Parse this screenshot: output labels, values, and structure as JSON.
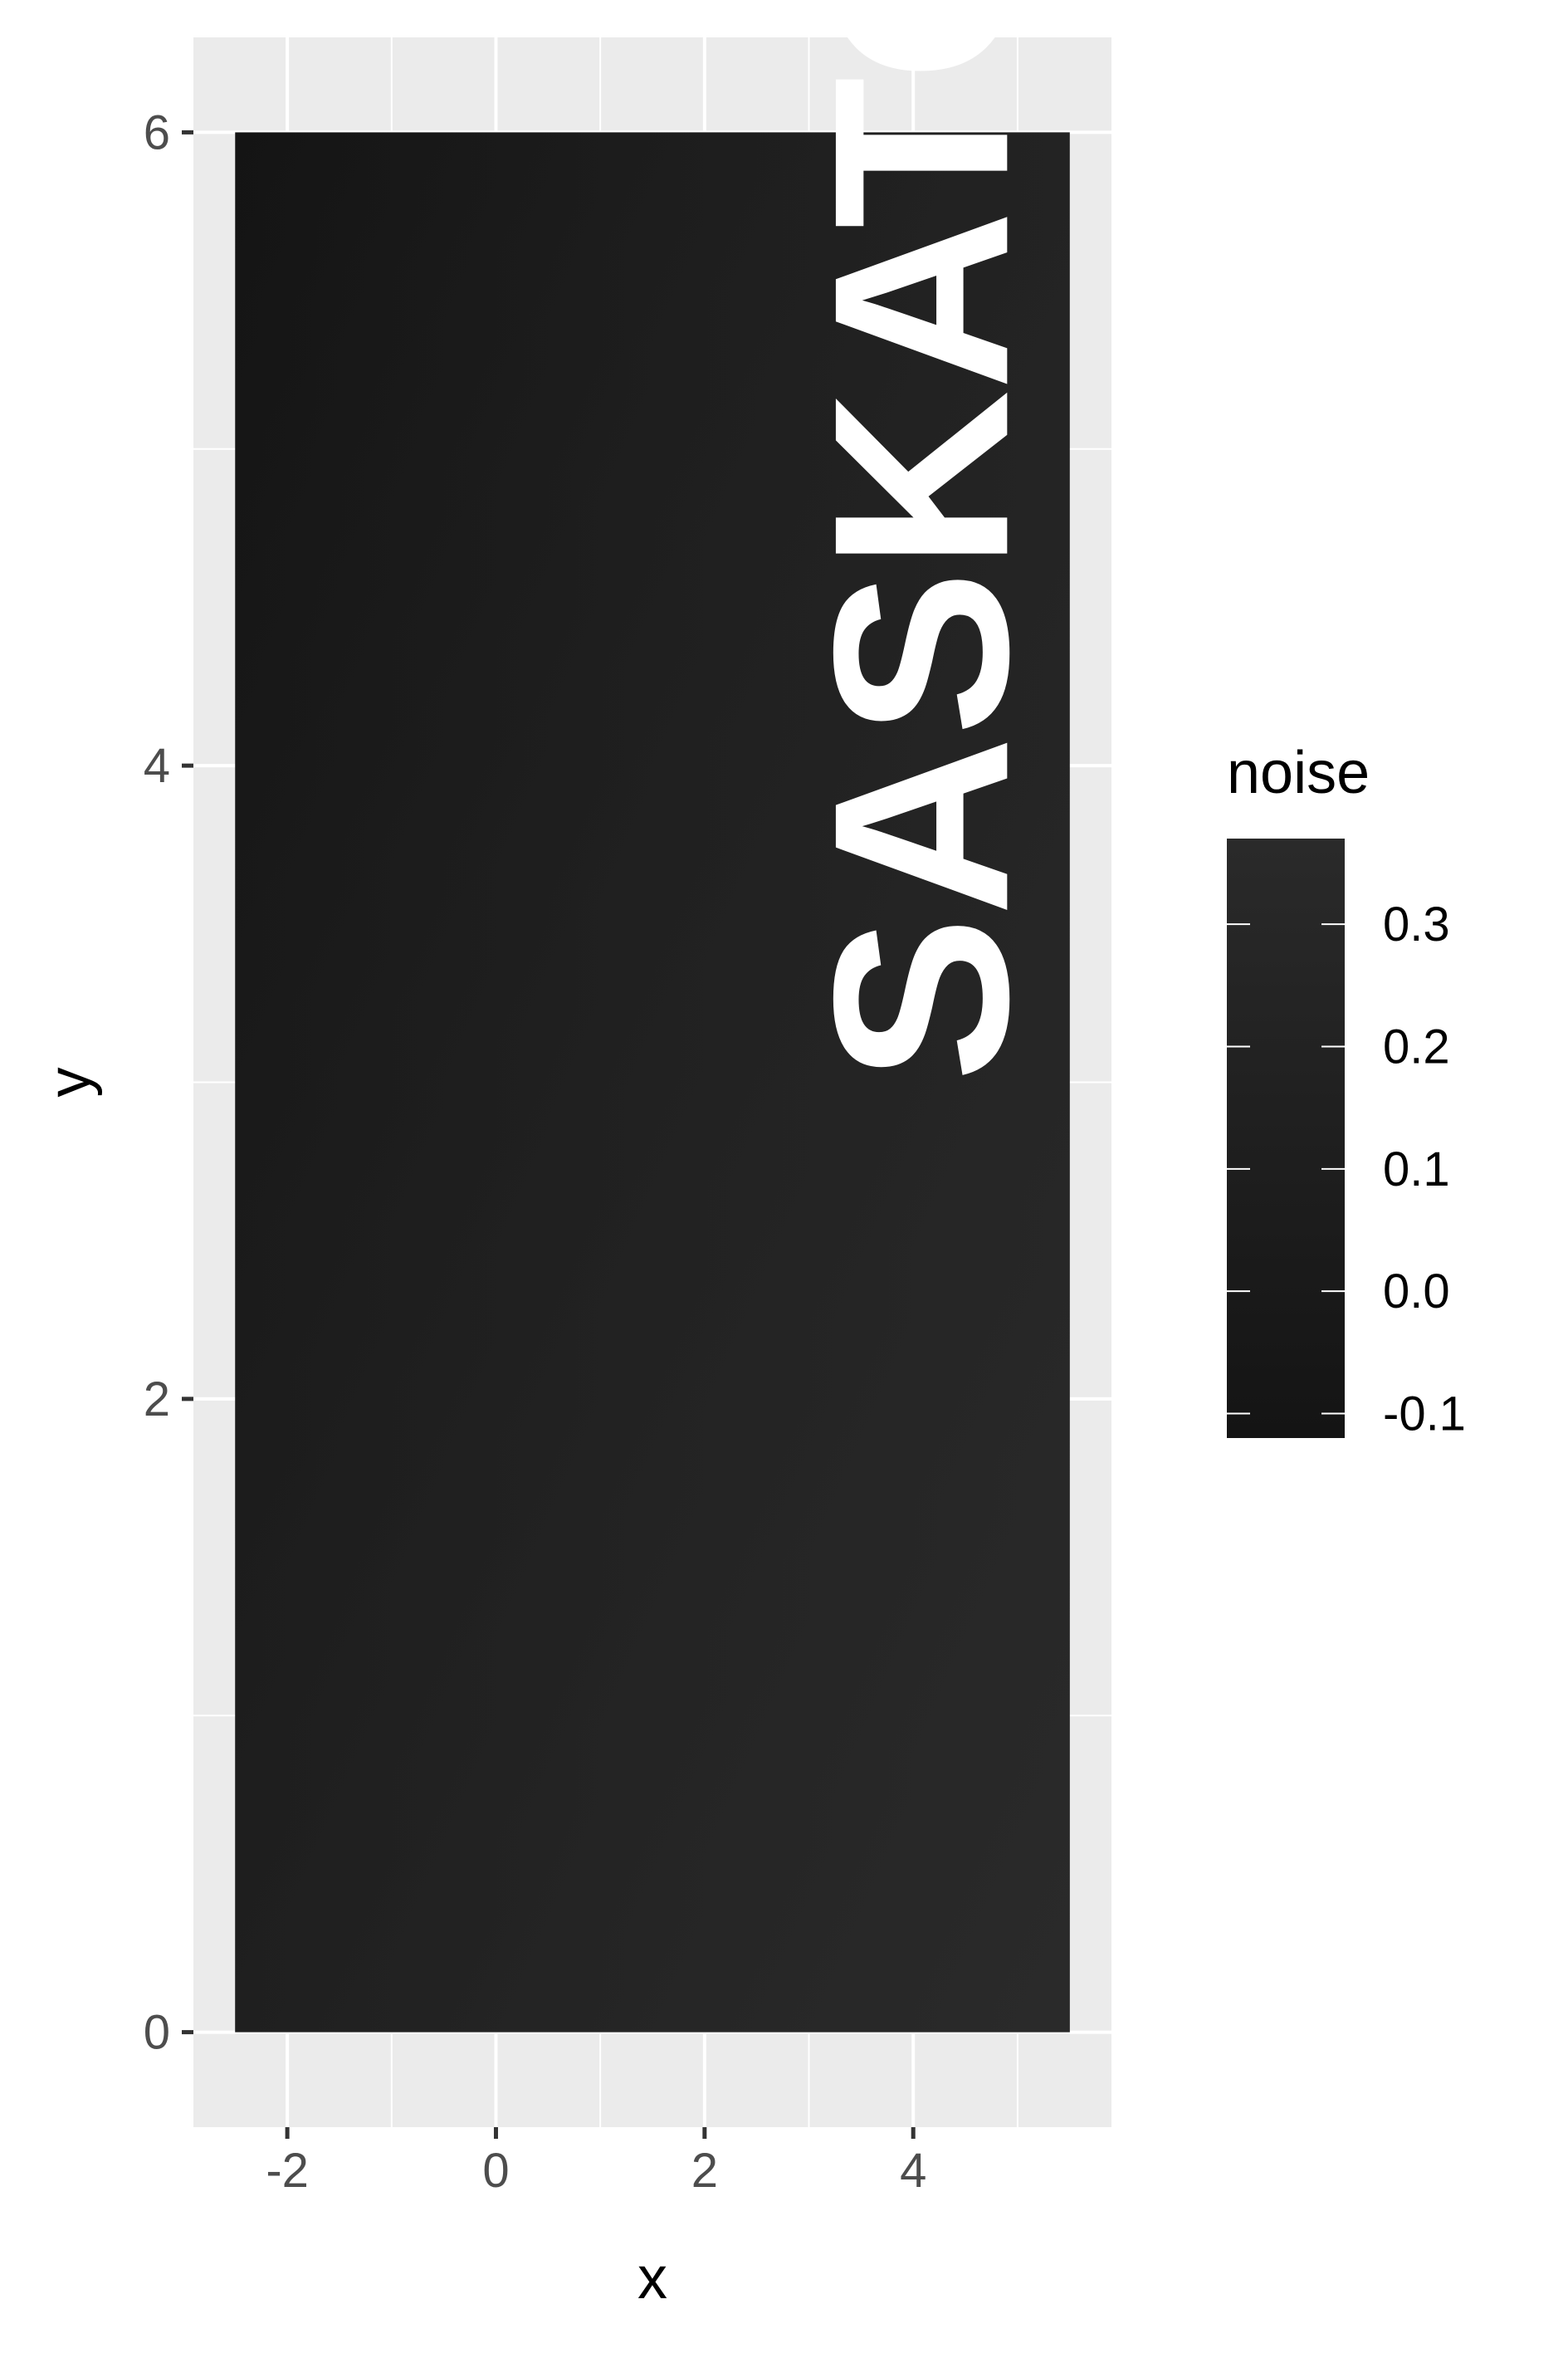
{
  "chart_data": {
    "type": "heatmap",
    "title": "",
    "xlabel": "x",
    "ylabel": "y",
    "xlim": [
      -2.9,
      5.9
    ],
    "ylim": [
      -0.3,
      6.3
    ],
    "x_ticks": [
      -2,
      0,
      2,
      4
    ],
    "x_tick_labels": [
      "-2",
      "0",
      "2",
      "4"
    ],
    "y_ticks": [
      0,
      2,
      4,
      6
    ],
    "y_tick_labels": [
      "0",
      "2",
      "4",
      "6"
    ],
    "x_minor_ticks": [
      -1,
      1,
      3,
      5
    ],
    "y_minor_ticks": [
      1,
      3,
      5
    ],
    "raster_extent": {
      "x": [
        -2.5,
        5.5
      ],
      "y": [
        0,
        6
      ]
    },
    "fill_variable": "noise",
    "legend": {
      "title": "noise",
      "position": "right",
      "breaks": [
        0.3,
        0.2,
        0.1,
        0.0,
        -0.1
      ],
      "labels": [
        "0.3",
        "0.2",
        "0.1",
        "0.0",
        "-0.1"
      ],
      "range": [
        -0.12,
        0.37
      ],
      "low_color": "#141414",
      "high_color": "#2a2a2a"
    },
    "gradient_corners": {
      "top_left": "#141414",
      "top_right": "#1c1c1c",
      "bottom_left": "#1a1a1a",
      "bottom_right": "#2a2a2a"
    },
    "annotation": {
      "text": "SASKATOON",
      "orientation": "vertical (rotated -90°)",
      "color": "#ffffff",
      "anchor_x": 4.9,
      "anchor_y": 3.0
    },
    "grid": true,
    "colors": {
      "panel_background": "#ebebeb",
      "grid_line": "#ffffff"
    }
  }
}
